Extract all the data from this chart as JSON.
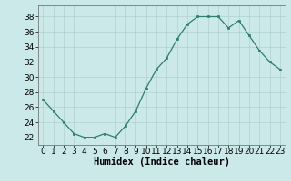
{
  "x": [
    0,
    1,
    2,
    3,
    4,
    5,
    6,
    7,
    8,
    9,
    10,
    11,
    12,
    13,
    14,
    15,
    16,
    17,
    18,
    19,
    20,
    21,
    22,
    23
  ],
  "y": [
    27,
    25.5,
    24,
    22.5,
    22,
    22,
    22.5,
    22,
    23.5,
    25.5,
    28.5,
    31,
    32.5,
    35,
    37,
    38,
    38,
    38,
    36.5,
    37.5,
    35.5,
    33.5,
    32,
    31
  ],
  "line_color": "#2e7d6e",
  "marker_color": "#2e7d6e",
  "bg_color": "#cce9e9",
  "grid_color": "#b0d0d0",
  "xlabel": "Humidex (Indice chaleur)",
  "ylabel_ticks": [
    22,
    24,
    26,
    28,
    30,
    32,
    34,
    36,
    38
  ],
  "xtick_labels": [
    "0",
    "1",
    "2",
    "3",
    "4",
    "5",
    "6",
    "7",
    "8",
    "9",
    "10",
    "11",
    "12",
    "13",
    "14",
    "15",
    "16",
    "17",
    "18",
    "19",
    "20",
    "21",
    "22",
    "23"
  ],
  "ylim": [
    21.0,
    39.5
  ],
  "xlim": [
    -0.5,
    23.5
  ],
  "tick_fontsize": 6.5,
  "xlabel_fontsize": 7.5
}
